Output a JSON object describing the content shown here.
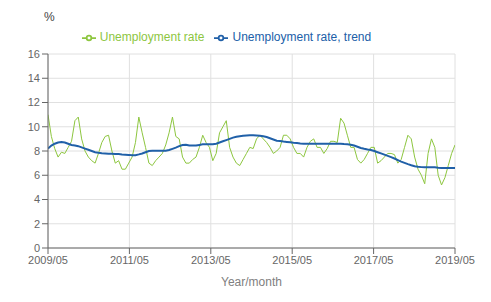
{
  "chart_data": {
    "type": "line",
    "xlabel": "Year/month",
    "ylabel": "%",
    "x": [
      0,
      0.9917,
      1.9835,
      2.9752,
      3.9669,
      4.9587,
      5.9504,
      6.9421,
      7.9339,
      8.9256,
      9.9174,
      10.9091,
      11.9008,
      12.8926,
      13.8843,
      14.876,
      15.8678,
      16.8595,
      17.8512,
      18.843,
      19.8347,
      20.8264,
      21.8182,
      22.8099,
      23.8017,
      24.7934,
      25.7851,
      26.7769,
      27.7686,
      28.7603,
      29.7521,
      30.7438,
      31.7355,
      32.7273,
      33.719,
      34.7107,
      35.7025,
      36.6942,
      37.686,
      38.6777,
      39.6694,
      40.6612,
      41.6529,
      42.6446,
      43.6364,
      44.6281,
      45.6198,
      46.6116,
      47.6033,
      48.595,
      49.5868,
      50.5785,
      51.5702,
      52.562,
      53.5537,
      54.5455,
      55.5372,
      56.5289,
      57.5207,
      58.5124,
      59.5041,
      60.4959,
      61.4876,
      62.4793,
      63.4711,
      64.4628,
      65.4545,
      66.4463,
      67.438,
      68.4298,
      69.4215,
      70.4132,
      71.405,
      72.3967,
      73.3884,
      74.3802,
      75.3719,
      76.3636,
      77.3554,
      78.3471,
      79.3388,
      80.3306,
      81.3223,
      82.314,
      83.3058,
      84.2975,
      85.2893,
      86.281,
      87.2727,
      88.2645,
      89.2562,
      90.2479,
      91.2397,
      92.2314,
      93.2231,
      94.2149,
      95.2066,
      96.1983,
      97.1901,
      98.1818,
      99.1736,
      100.1653,
      101.157,
      102.1488,
      103.1405,
      104.1322,
      105.124,
      106.1157,
      107.1074,
      108.0992,
      109.0909,
      110.0826,
      111.0744,
      112.0661,
      113.0579,
      114.0496,
      115.0413,
      116.0331,
      117.0248,
      118.0165,
      119.0083,
      120
    ],
    "series": [
      {
        "name": "Unemployment rate",
        "color": "#8dc63f",
        "values": [
          11.0,
          9.2,
          8.2,
          7.5,
          7.9,
          7.8,
          8.3,
          8.8,
          10.5,
          10.8,
          9.0,
          8.0,
          7.5,
          7.2,
          7.0,
          7.8,
          8.7,
          9.2,
          9.3,
          8.0,
          7.0,
          7.2,
          6.5,
          6.5,
          7.0,
          7.5,
          8.7,
          10.8,
          9.5,
          8.3,
          7.0,
          6.8,
          7.2,
          7.5,
          7.8,
          8.5,
          9.5,
          10.8,
          9.2,
          9.0,
          7.5,
          7.0,
          7.0,
          7.3,
          7.5,
          8.3,
          9.3,
          8.7,
          8.3,
          7.2,
          7.8,
          9.5,
          10.0,
          10.5,
          8.3,
          7.5,
          7.0,
          6.8,
          7.3,
          7.8,
          8.3,
          8.2,
          9.0,
          9.3,
          9.0,
          8.7,
          8.3,
          7.8,
          8.0,
          8.3,
          9.3,
          9.3,
          9.0,
          8.3,
          7.8,
          7.8,
          7.5,
          8.3,
          8.8,
          9.0,
          8.3,
          8.3,
          7.8,
          8.2,
          8.8,
          8.8,
          8.7,
          10.7,
          10.3,
          9.3,
          8.3,
          8.3,
          7.3,
          7.0,
          7.3,
          7.8,
          8.3,
          8.3,
          7.0,
          7.2,
          7.5,
          7.8,
          7.8,
          7.7,
          7.0,
          7.3,
          8.3,
          9.3,
          9.0,
          7.5,
          6.5,
          6.0,
          5.3,
          7.8,
          9.0,
          8.3,
          6.0,
          5.2,
          5.8,
          6.8,
          7.8,
          8.5
        ]
      },
      {
        "name": "Unemployment rate, trend",
        "color": "#2060a8",
        "values": [
          8.2,
          8.45,
          8.6,
          8.7,
          8.75,
          8.7,
          8.6,
          8.5,
          8.45,
          8.4,
          8.3,
          8.2,
          8.1,
          8.0,
          7.9,
          7.85,
          7.82,
          7.8,
          7.78,
          7.77,
          7.76,
          7.75,
          7.72,
          7.7,
          7.68,
          7.65,
          7.65,
          7.72,
          7.8,
          7.9,
          8.0,
          8.02,
          8.03,
          8.03,
          8.03,
          8.03,
          8.08,
          8.18,
          8.28,
          8.4,
          8.5,
          8.52,
          8.45,
          8.45,
          8.45,
          8.5,
          8.55,
          8.55,
          8.55,
          8.55,
          8.6,
          8.7,
          8.8,
          8.9,
          9.0,
          9.1,
          9.18,
          9.22,
          9.25,
          9.28,
          9.3,
          9.3,
          9.28,
          9.25,
          9.22,
          9.15,
          9.05,
          8.95,
          8.85,
          8.82,
          8.78,
          8.75,
          8.72,
          8.68,
          8.65,
          8.62,
          8.6,
          8.6,
          8.6,
          8.6,
          8.6,
          8.6,
          8.6,
          8.6,
          8.6,
          8.6,
          8.6,
          8.6,
          8.57,
          8.55,
          8.52,
          8.45,
          8.35,
          8.25,
          8.18,
          8.12,
          8.08,
          8.0,
          7.9,
          7.8,
          7.7,
          7.6,
          7.5,
          7.38,
          7.25,
          7.12,
          7.02,
          6.92,
          6.83,
          6.75,
          6.7,
          6.67,
          6.65,
          6.65,
          6.65,
          6.65,
          6.62,
          6.6,
          6.6,
          6.6,
          6.6,
          6.6
        ]
      }
    ],
    "xlim": [
      0,
      120
    ],
    "xticks": [
      {
        "value": 0,
        "label": "2009/05"
      },
      {
        "value": 24,
        "label": "2011/05"
      },
      {
        "value": 48,
        "label": "2013/05"
      },
      {
        "value": 72,
        "label": "2015/05"
      },
      {
        "value": 96,
        "label": "2017/05"
      },
      {
        "value": 120,
        "label": "2019/05"
      }
    ],
    "ylim": [
      0,
      16
    ],
    "yticks": [
      0,
      2,
      4,
      6,
      8,
      10,
      12,
      14,
      16
    ],
    "grid": true,
    "legend": "top"
  }
}
